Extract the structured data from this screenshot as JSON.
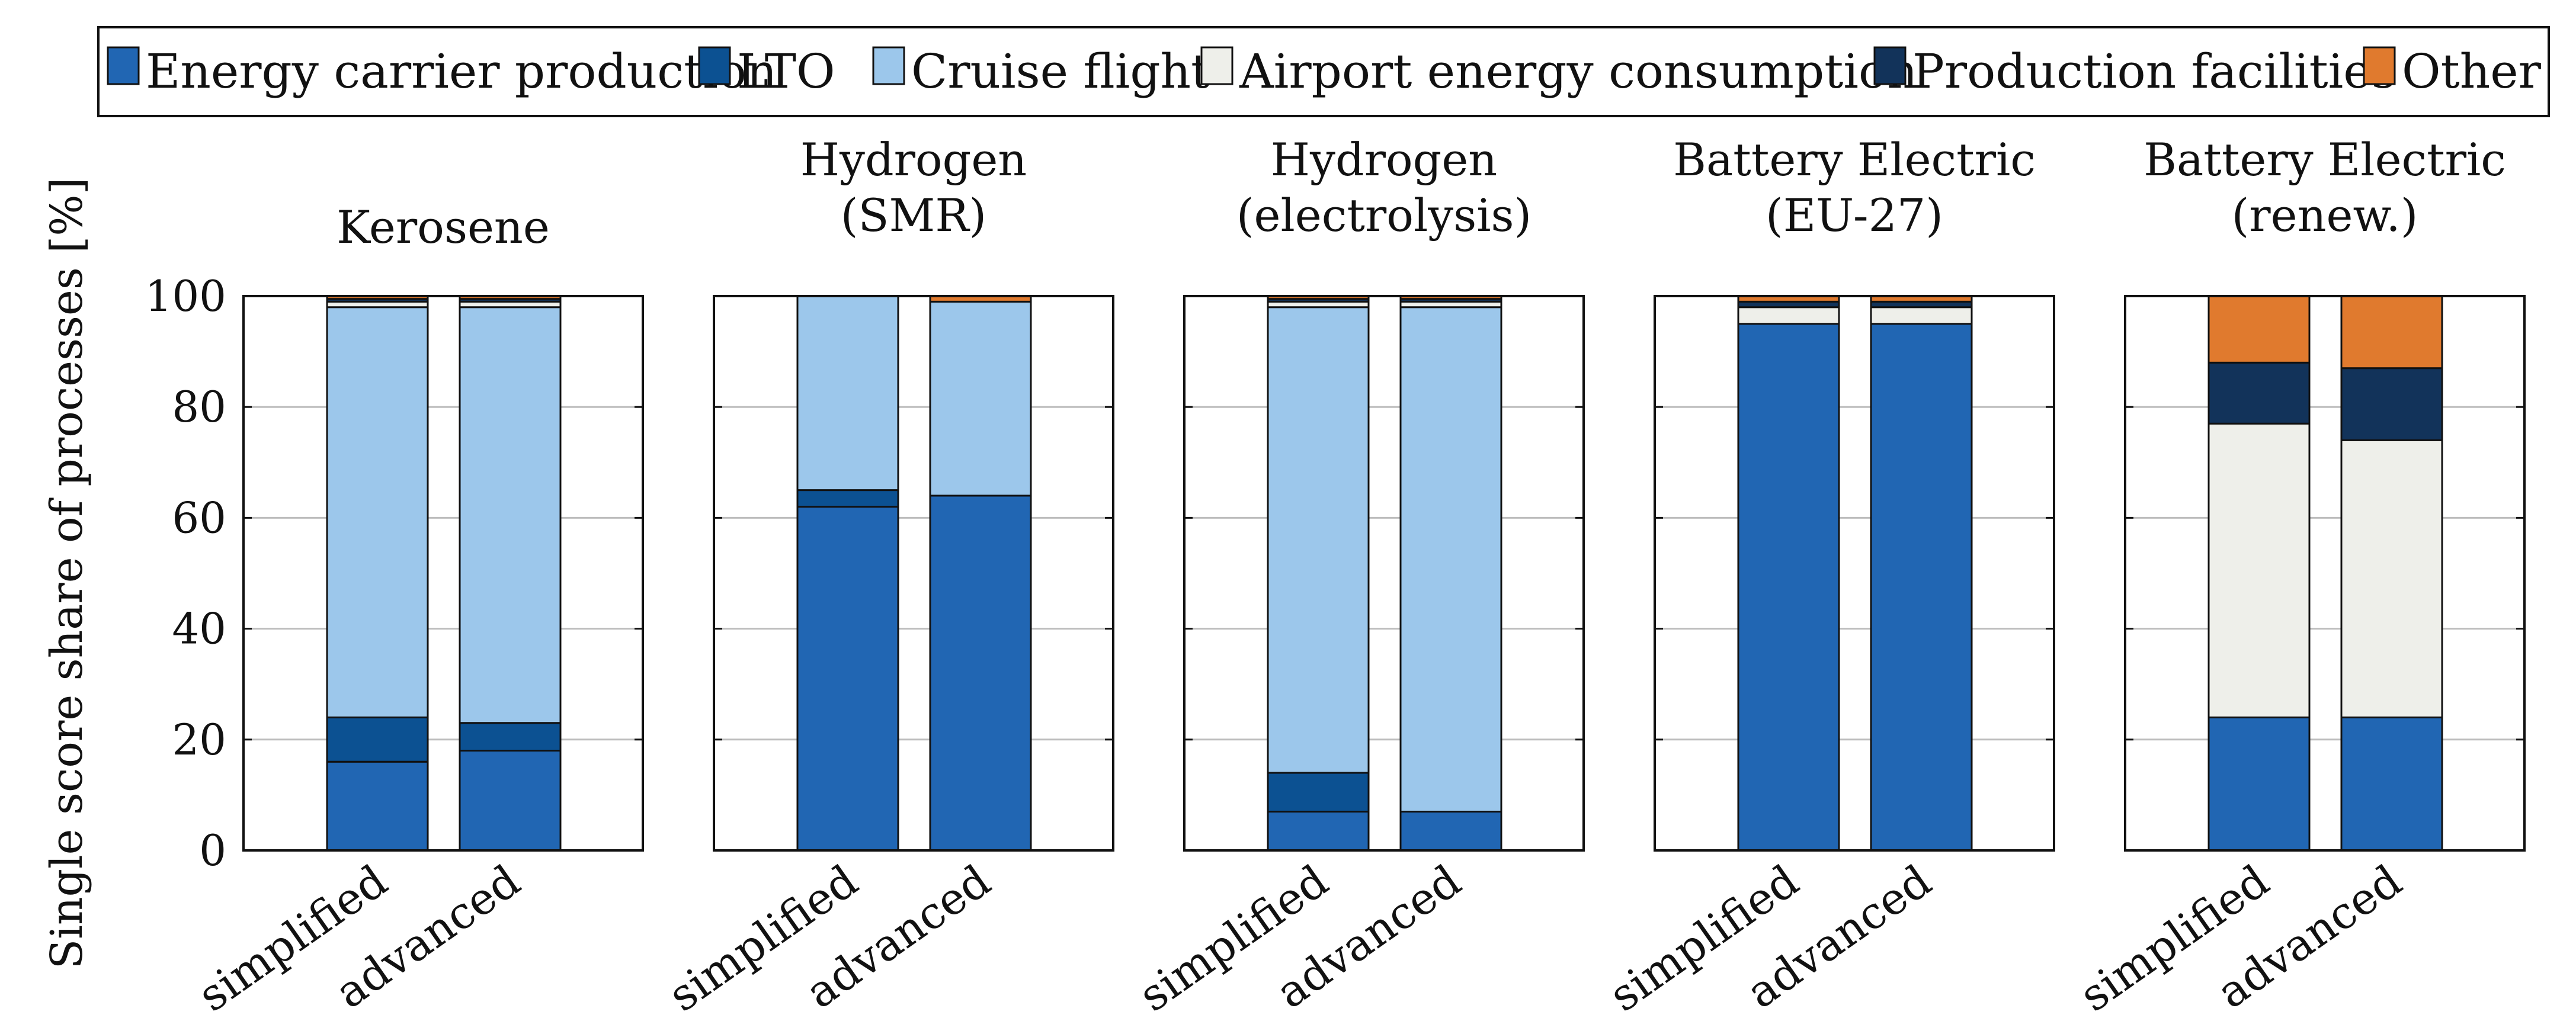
{
  "chart_data": {
    "type": "bar",
    "stacked": true,
    "ylabel": "Single score share of processes [%]",
    "ylim": [
      0,
      100
    ],
    "yticks": [
      0,
      20,
      40,
      60,
      80,
      100
    ],
    "grid": true,
    "legend_position": "top",
    "categories": [
      "simplified",
      "advanced"
    ],
    "series": [
      {
        "name": "Energy carrier production",
        "color": "#2166b3"
      },
      {
        "name": "LTO",
        "color": "#0c5192"
      },
      {
        "name": "Cruise flight",
        "color": "#9cc7eb"
      },
      {
        "name": "Airport energy consumption",
        "color": "#eeefea"
      },
      {
        "name": "Production facilities",
        "color": "#12335a"
      },
      {
        "name": "Other",
        "color": "#e07a2e"
      }
    ],
    "panels": [
      {
        "title": [
          "Kerosene"
        ],
        "bars": [
          {
            "category": "simplified",
            "values": [
              16,
              8,
              74,
              1,
              0.5,
              0.5
            ]
          },
          {
            "category": "advanced",
            "values": [
              18,
              5,
              75,
              1,
              0.5,
              0.5
            ]
          }
        ]
      },
      {
        "title": [
          "Hydrogen",
          "(SMR)"
        ],
        "bars": [
          {
            "category": "simplified",
            "values": [
              62,
              3,
              35,
              0,
              0,
              0
            ]
          },
          {
            "category": "advanced",
            "values": [
              64,
              0,
              35,
              0,
              0,
              1
            ]
          }
        ]
      },
      {
        "title": [
          "Hydrogen",
          "(electrolysis)"
        ],
        "bars": [
          {
            "category": "simplified",
            "values": [
              7,
              7,
              84,
              1,
              0.5,
              0.5
            ]
          },
          {
            "category": "advanced",
            "values": [
              7,
              0,
              91,
              1,
              0.5,
              0.5
            ]
          }
        ]
      },
      {
        "title": [
          "Battery Electric",
          "(EU-27)"
        ],
        "bars": [
          {
            "category": "simplified",
            "values": [
              95,
              0,
              0,
              3,
              1,
              1
            ]
          },
          {
            "category": "advanced",
            "values": [
              95,
              0,
              0,
              3,
              1,
              1
            ]
          }
        ]
      },
      {
        "title": [
          "Battery Electric",
          "(renew.)"
        ],
        "bars": [
          {
            "category": "simplified",
            "values": [
              24,
              0,
              0,
              53,
              11,
              12
            ]
          },
          {
            "category": "advanced",
            "values": [
              24,
              0,
              0,
              50,
              13,
              13
            ]
          }
        ]
      }
    ]
  }
}
